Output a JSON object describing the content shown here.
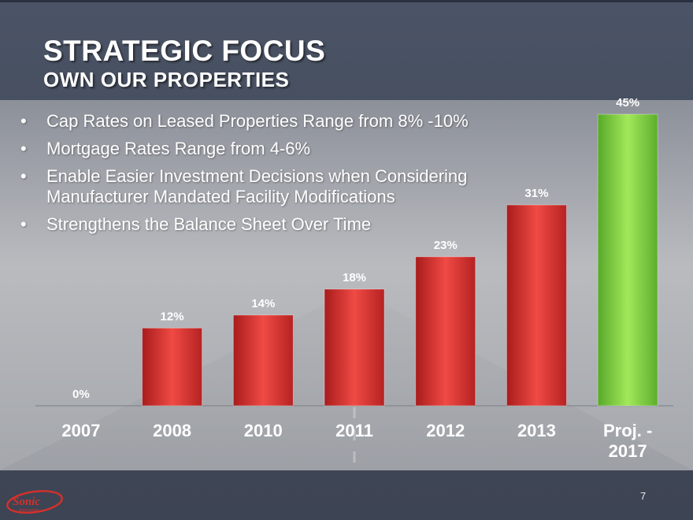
{
  "slide": {
    "title": "STRATEGIC FOCUS",
    "subtitle": "OWN OUR PROPERTIES",
    "page_number": "7",
    "logo_text": "Sonic Automotive"
  },
  "bullets": [
    "Cap Rates on Leased Properties Range from 8% -10%",
    "Mortgage Rates Range from 4-6%",
    "Enable Easier Investment Decisions when Considering Manufacturer Mandated Facility Modifications",
    "Strengthens the Balance Sheet Over Time"
  ],
  "bullet_glyph": "•",
  "colors": {
    "bar_actual": "#e23a36",
    "bar_projected": "#86d23e",
    "background": "#434b5b"
  },
  "chart_data": {
    "type": "bar",
    "categories": [
      "2007",
      "2008",
      "2010",
      "2011",
      "2012",
      "2013",
      "Proj. - 2017"
    ],
    "values": [
      0,
      12,
      14,
      18,
      23,
      31,
      45
    ],
    "data_labels": [
      "0%",
      "12%",
      "14%",
      "18%",
      "23%",
      "31%",
      "45%"
    ],
    "unit": "%",
    "projected_index": 6,
    "ylim": [
      0,
      45
    ],
    "grid": false,
    "legend": "none",
    "title": "",
    "xlabel": "",
    "ylabel": ""
  }
}
